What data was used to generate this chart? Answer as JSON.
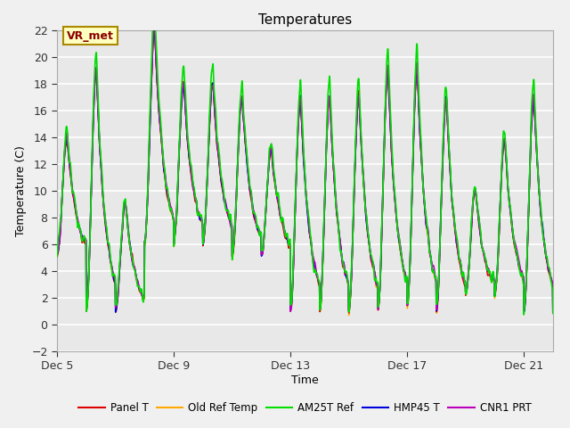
{
  "title": "Temperatures",
  "xlabel": "Time",
  "ylabel": "Temperature (C)",
  "ylim": [
    -2,
    22
  ],
  "yticks": [
    -2,
    0,
    2,
    4,
    6,
    8,
    10,
    12,
    14,
    16,
    18,
    20,
    22
  ],
  "xtick_labels": [
    "Dec 5",
    "Dec 9",
    "Dec 13",
    "Dec 17",
    "Dec 21"
  ],
  "xtick_positions": [
    0,
    4,
    8,
    12,
    16
  ],
  "xlim": [
    0,
    17
  ],
  "annotation_text": "VR_met",
  "series_colors": {
    "panel_t": "#dd0000",
    "old_ref": "#ffaa00",
    "am25t": "#00dd00",
    "hmp45": "#0000dd",
    "cnr1": "#bb00bb"
  },
  "legend_labels": [
    "Panel T",
    "Old Ref Temp",
    "AM25T Ref",
    "HMP45 T",
    "CNR1 PRT"
  ],
  "plot_bg_color": "#e8e8e8",
  "fig_bg_color": "#f0f0f0",
  "n_points": 2000
}
